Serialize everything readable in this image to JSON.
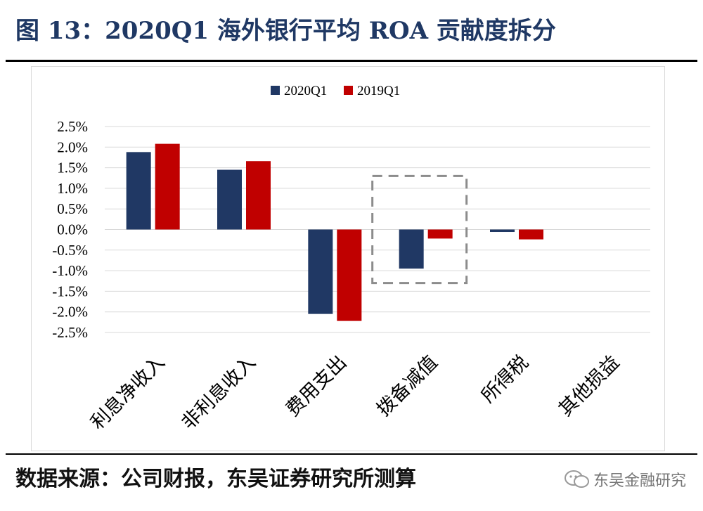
{
  "figure_title": "图 13：2020Q1 海外银行平均 ROA 贡献度拆分",
  "source_note": "数据来源：公司财报，东吴证券研究所测算",
  "watermark": "东吴金融研究",
  "chart_data": {
    "type": "bar",
    "categories": [
      "利息净收入",
      "非利息收入",
      "费用支出",
      "拨备减值",
      "所得税",
      "其他损益"
    ],
    "series": [
      {
        "name": "2020Q1",
        "color": "#203864",
        "values": [
          1.88,
          1.45,
          -2.05,
          -0.95,
          -0.06,
          0.0
        ]
      },
      {
        "name": "2019Q1",
        "color": "#c00000",
        "values": [
          2.08,
          1.66,
          -2.22,
          -0.22,
          -0.24,
          0.0
        ]
      }
    ],
    "ylim": [
      -2.5,
      2.5
    ],
    "yticks": [
      "2.5%",
      "2.0%",
      "1.5%",
      "1.0%",
      "0.5%",
      "0.0%",
      "-0.5%",
      "-1.0%",
      "-1.5%",
      "-2.0%",
      "-2.5%"
    ],
    "ytick_values": [
      2.5,
      2.0,
      1.5,
      1.0,
      0.5,
      0.0,
      -0.5,
      -1.0,
      -1.5,
      -2.0,
      -2.5
    ],
    "grid": true,
    "legend_position": "top-center",
    "highlight_category": "拨备减值",
    "xlabel": "",
    "ylabel": ""
  }
}
